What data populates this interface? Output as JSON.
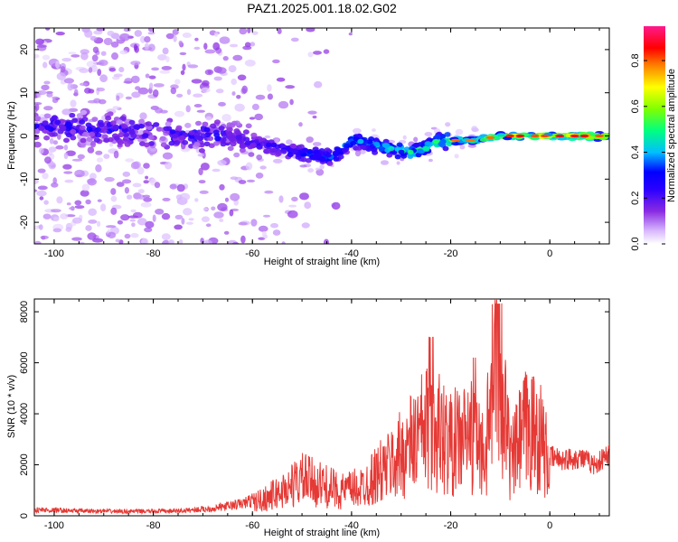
{
  "title": "PAZ1.2025.001.18.02.G02",
  "colors": {
    "snr_line": "#e53935",
    "colormap": [
      "#ffffff",
      "#d8b8ff",
      "#8a2be2",
      "#2a00ff",
      "#0000ff",
      "#00bfff",
      "#00ff80",
      "#80ff00",
      "#ffff00",
      "#ff8000",
      "#ff0000",
      "#ff1a8c"
    ]
  },
  "chart_data": [
    {
      "type": "heatmap",
      "xlabel": "Height of straight line (km)",
      "ylabel": "Frequency (Hz)",
      "xlim": [
        -104,
        12
      ],
      "ylim": [
        -25,
        25
      ],
      "xticks": [
        -100,
        -80,
        -60,
        -40,
        -20,
        0
      ],
      "yticks": [
        -20,
        -10,
        0,
        10,
        20
      ],
      "colorbar": {
        "label": "Normalized spectral amplitude",
        "range": [
          0,
          0.95
        ],
        "ticks": [
          "0.0",
          "0.2",
          "0.4",
          "0.6",
          "0.8"
        ],
        "tick_values": [
          0,
          0.2,
          0.4,
          0.6,
          0.8
        ]
      },
      "ridge": [
        {
          "x": -104,
          "y": 2
        },
        {
          "x": -95,
          "y": 2
        },
        {
          "x": -85,
          "y": 1
        },
        {
          "x": -75,
          "y": 0
        },
        {
          "x": -65,
          "y": 0
        },
        {
          "x": -58,
          "y": -2
        },
        {
          "x": -50,
          "y": -4
        },
        {
          "x": -44,
          "y": -5
        },
        {
          "x": -40,
          "y": -1
        },
        {
          "x": -35,
          "y": -2
        },
        {
          "x": -28,
          "y": -4
        },
        {
          "x": -22,
          "y": -1
        },
        {
          "x": -15,
          "y": -1
        },
        {
          "x": -10,
          "y": 0
        },
        {
          "x": -5,
          "y": 0
        },
        {
          "x": 0,
          "y": 0
        },
        {
          "x": 5,
          "y": 0
        },
        {
          "x": 12,
          "y": 0
        }
      ]
    },
    {
      "type": "line",
      "xlabel": "Height of straight line (km)",
      "ylabel": "SNR (10 * v/v)",
      "xlim": [
        -104,
        12
      ],
      "ylim": [
        0,
        8500
      ],
      "xticks": [
        -100,
        -80,
        -60,
        -40,
        -20,
        0
      ],
      "yticks": [
        0,
        2000,
        4000,
        6000,
        8000
      ],
      "series": [
        {
          "values": [
            {
              "x": -104,
              "y": 250
            },
            {
              "x": -95,
              "y": 200
            },
            {
              "x": -85,
              "y": 180
            },
            {
              "x": -75,
              "y": 200
            },
            {
              "x": -68,
              "y": 300
            },
            {
              "x": -62,
              "y": 500
            },
            {
              "x": -58,
              "y": 800
            },
            {
              "x": -54,
              "y": 1200
            },
            {
              "x": -50,
              "y": 1800
            },
            {
              "x": -46,
              "y": 1500
            },
            {
              "x": -42,
              "y": 1200
            },
            {
              "x": -38,
              "y": 1400
            },
            {
              "x": -35,
              "y": 2000
            },
            {
              "x": -32,
              "y": 2500
            },
            {
              "x": -28,
              "y": 3500
            },
            {
              "x": -24,
              "y": 4500
            },
            {
              "x": -20,
              "y": 3500
            },
            {
              "x": -16,
              "y": 4000
            },
            {
              "x": -13,
              "y": 3000
            },
            {
              "x": -10.5,
              "y": 8400
            },
            {
              "x": -8,
              "y": 2500
            },
            {
              "x": -5,
              "y": 4200
            },
            {
              "x": -2,
              "y": 4000
            },
            {
              "x": 0,
              "y": 2300
            },
            {
              "x": 3,
              "y": 2200
            },
            {
              "x": 6,
              "y": 2300
            },
            {
              "x": 9,
              "y": 2000
            },
            {
              "x": 12,
              "y": 2400
            }
          ]
        }
      ]
    }
  ]
}
